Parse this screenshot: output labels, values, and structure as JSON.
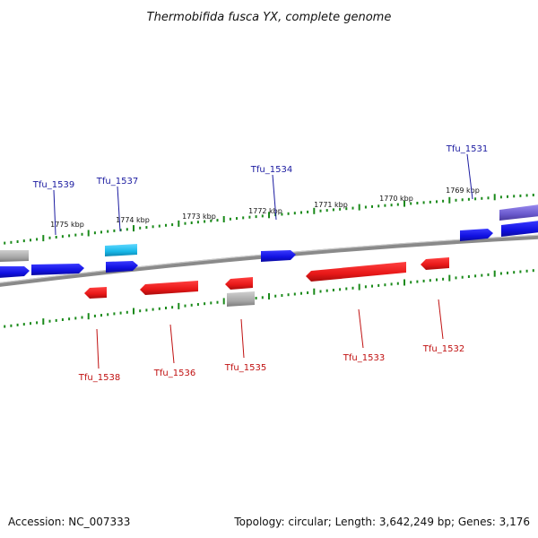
{
  "title": "Thermobifida fusca YX, complete genome",
  "footer": {
    "accession": "Accession: NC_007333",
    "summary": "Topology: circular; Length: 3,642,249 bp; Genes: 3,176"
  },
  "scale_labels": [
    "1775 kbp",
    "1774 kbp",
    "1773 kbp",
    "1772 kbp",
    "1771 kbp",
    "1770 kbp",
    "1769 kbp"
  ],
  "genes_top_labels": [
    "Tfu_1539",
    "Tfu_1537",
    "Tfu_1534",
    "Tfu_1531"
  ],
  "genes_bottom_labels": [
    "Tfu_1538",
    "Tfu_1536",
    "Tfu_1535",
    "Tfu_1533",
    "Tfu_1532"
  ],
  "colors": {
    "forward": "#1010e0",
    "reverse": "#e81818",
    "highlight": "#18b8e8",
    "grey": "#a8a8a8",
    "purple": "#6a5acd",
    "tick": "#1a8a1a",
    "backbone": "#808080",
    "label_top": "#1a1aa0",
    "label_bottom": "#c01010"
  }
}
